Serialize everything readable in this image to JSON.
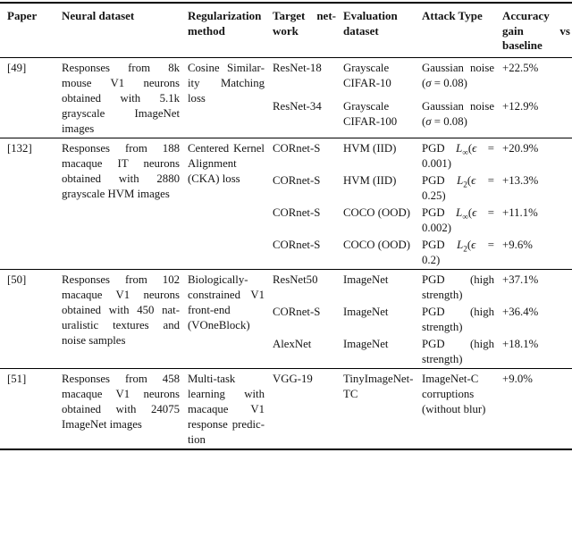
{
  "header": {
    "cells": [
      {
        "name": "paper",
        "lines": [
          "Paper"
        ]
      },
      {
        "name": "neural-dataset",
        "lines": [
          "Neural dataset"
        ]
      },
      {
        "name": "regularization",
        "lines": [
          "Regularization",
          "method"
        ]
      },
      {
        "name": "target-network",
        "lines": [
          "Target net-",
          "work"
        ]
      },
      {
        "name": "evaluation",
        "lines": [
          "Evaluation",
          "dataset"
        ]
      },
      {
        "name": "attack-type",
        "lines": [
          "Attack Type"
        ]
      },
      {
        "name": "accuracy-gain",
        "lines": [
          "Accuracy",
          "gain vs",
          "baseline"
        ]
      }
    ]
  },
  "groups": [
    {
      "paper": "[49]",
      "neural_dataset": "Responses from 8k mouse V1 neurons obtained with 5.1k grayscale ImageNet images",
      "regularization": "Cosine Similar­ity Matching loss",
      "results": [
        {
          "network": "ResNet-18",
          "eval": "Grayscale CIFAR-10",
          "attack": "Gaussian noise (σ = 0.08)",
          "gain": "+22.5%"
        },
        {
          "network": "ResNet-34",
          "eval": "Grayscale CIFAR-100",
          "attack": "Gaussian noise (σ = 0.08)",
          "gain": "+12.9%"
        }
      ]
    },
    {
      "paper": "[132]",
      "neural_dataset": "Responses from 188 macaque IT neurons obtained with 2880 grayscale HVM images",
      "regularization": "Centered Ker­nel Alignment (CKA) loss",
      "results": [
        {
          "network": "CORnet-S",
          "eval": "HVM (IID)",
          "attack": "PGD L_{∞}(ϵ = 0.001)",
          "gain": "+20.9%"
        },
        {
          "network": "CORnet-S",
          "eval": "HVM (IID)",
          "attack": "PGD L_{2}(ϵ = 0.25)",
          "gain": "+13.3%"
        },
        {
          "network": "CORnet-S",
          "eval": "COCO (OOD)",
          "attack": "PGD L_{∞}(ϵ = 0.002)",
          "gain": "+11.1%"
        },
        {
          "network": "CORnet-S",
          "eval": "COCO (OOD)",
          "attack": "PGD L_{2}(ϵ = 0.2)",
          "gain": "+9.6%"
        }
      ]
    },
    {
      "paper": "[50]",
      "neural_dataset": "Responses from 102 macaque V1 neurons obtained with 450 nat­uralistic textures and noise samples",
      "regularization": "Biologically-constrained V1 front-end (VOneBlock)",
      "results": [
        {
          "network": "ResNet50",
          "eval": "ImageNet",
          "attack": "PGD (high strength)",
          "gain": "+37.1%"
        },
        {
          "network": "CORnet-S",
          "eval": "ImageNet",
          "attack": "PGD (high strength)",
          "gain": "+36.4%"
        },
        {
          "network": "AlexNet",
          "eval": "ImageNet",
          "attack": "PGD (high strength)",
          "gain": "+18.1%"
        }
      ]
    },
    {
      "paper": "[51]",
      "neural_dataset": "Responses from 458 macaque V1 neurons obtained with 24075 ImageNet images",
      "regularization": "Multi-task learning with macaque V1 response predic­tion",
      "results": [
        {
          "network": "VGG-19",
          "eval": "TinyImageNet-TC",
          "attack": "ImageNet-C corruptions (without blur)",
          "gain": "+9.0%"
        }
      ]
    }
  ]
}
